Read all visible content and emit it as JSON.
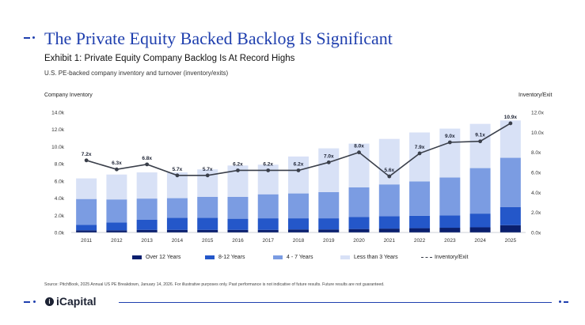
{
  "header": {
    "title": "The Private Equity Backed Backlog Is Significant",
    "subtitle": "Exhibit 1: Private Equity Company Backlog Is At Record Highs",
    "description": "U.S. PE-backed company inventory and turnover (inventory/exits)"
  },
  "colors": {
    "brand": "#1f3fae",
    "over12": "#0a1f6e",
    "y8_12": "#2457c9",
    "y4_7": "#7b9ce2",
    "lt3": "#d8e1f6",
    "line": "#3a3f4a"
  },
  "chart_data": {
    "type": "bar",
    "stacked": true,
    "title": "Exhibit 1: Private Equity Company Backlog Is At Record Highs",
    "ylabel": "Company Inventory",
    "y2label": "Inventory/Exit",
    "ylim": [
      0,
      14000
    ],
    "y2lim": [
      0,
      12
    ],
    "yticks": [
      "0.0k",
      "2.0k",
      "4.0k",
      "6.0k",
      "8.0k",
      "10.0k",
      "12.0k",
      "14.0k"
    ],
    "y2ticks": [
      "0.0x",
      "2.0x",
      "4.0x",
      "6.0x",
      "8.0x",
      "10.0x",
      "12.0x"
    ],
    "categories": [
      "2011",
      "2012",
      "2013",
      "2014",
      "2015",
      "2016",
      "2017",
      "2018",
      "2019",
      "2020",
      "2021",
      "2022",
      "2023",
      "2024",
      "2025"
    ],
    "series": [
      {
        "name": "Over 12 Years",
        "values": [
          250,
          250,
          300,
          300,
          300,
          300,
          300,
          350,
          350,
          400,
          450,
          500,
          550,
          600,
          850
        ]
      },
      {
        "name": "8-12 Years",
        "values": [
          650,
          900,
          1200,
          1400,
          1400,
          1300,
          1350,
          1300,
          1300,
          1400,
          1450,
          1450,
          1450,
          1600,
          2100
        ]
      },
      {
        "name": "4 - 7 Years",
        "values": [
          3000,
          2700,
          2450,
          2300,
          2450,
          2550,
          2800,
          2900,
          3050,
          3450,
          3700,
          4000,
          4400,
          5300,
          5750
        ]
      },
      {
        "name": "Less than 3 Years",
        "values": [
          2400,
          2900,
          3050,
          3000,
          3200,
          3650,
          3450,
          4300,
          5100,
          5100,
          5300,
          5700,
          5700,
          5150,
          4350
        ]
      }
    ],
    "line": {
      "name": "Inventory/Exit",
      "values": [
        7.2,
        6.3,
        6.8,
        5.7,
        5.7,
        6.2,
        6.2,
        6.2,
        7.0,
        8.0,
        5.6,
        7.9,
        9.0,
        9.1,
        10.9
      ],
      "labels": [
        "7.2x",
        "6.3x",
        "6.8x",
        "5.7x",
        "5.7x",
        "6.2x",
        "6.2x",
        "6.2x",
        "7.0x",
        "8.0x",
        "5.6x",
        "7.9x",
        "9.0x",
        "9.1x",
        "10.9x"
      ]
    },
    "legend": [
      "Over 12 Years",
      "8-12 Years",
      "4 - 7 Years",
      "Less than 3 Years",
      "Inventory/Exit"
    ],
    "legend_position": "bottom"
  },
  "footer": {
    "source": "Source: PitchBook, 2025 Annual US PE Breakdown, January 14, 2026. For illustrative purposes only. Past performance is not indicative of future results. Future results are not guaranteed.",
    "logo_mark": "i",
    "logo_text": "iCapital"
  }
}
